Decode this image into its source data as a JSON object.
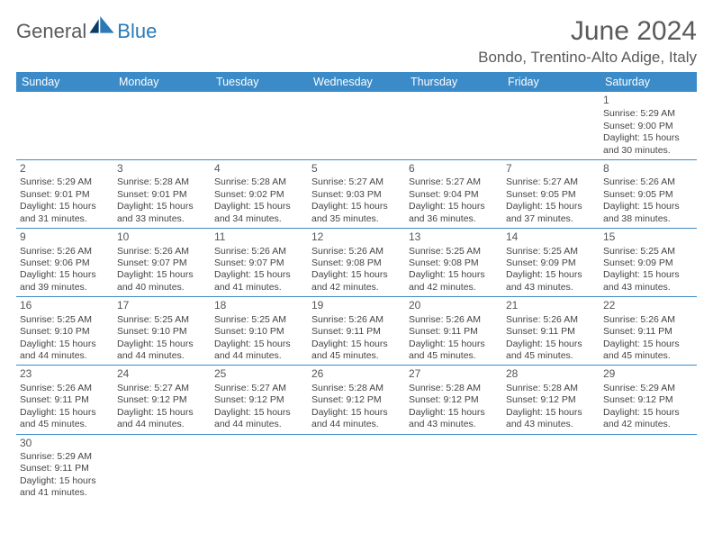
{
  "brand": {
    "part1": "General",
    "part2": "Blue"
  },
  "title": "June 2024",
  "location": "Bondo, Trentino-Alto Adige, Italy",
  "colors": {
    "header_bg": "#3b8bc8",
    "header_text": "#ffffff",
    "border": "#3b8bc8",
    "text": "#444444",
    "logo_gray": "#5a5a5a",
    "logo_blue": "#2a7ab8"
  },
  "weekdays": [
    "Sunday",
    "Monday",
    "Tuesday",
    "Wednesday",
    "Thursday",
    "Friday",
    "Saturday"
  ],
  "cells": [
    [
      null,
      null,
      null,
      null,
      null,
      null,
      {
        "day": "1",
        "sunrise": "Sunrise: 5:29 AM",
        "sunset": "Sunset: 9:00 PM",
        "daylight1": "Daylight: 15 hours",
        "daylight2": "and 30 minutes."
      }
    ],
    [
      {
        "day": "2",
        "sunrise": "Sunrise: 5:29 AM",
        "sunset": "Sunset: 9:01 PM",
        "daylight1": "Daylight: 15 hours",
        "daylight2": "and 31 minutes."
      },
      {
        "day": "3",
        "sunrise": "Sunrise: 5:28 AM",
        "sunset": "Sunset: 9:01 PM",
        "daylight1": "Daylight: 15 hours",
        "daylight2": "and 33 minutes."
      },
      {
        "day": "4",
        "sunrise": "Sunrise: 5:28 AM",
        "sunset": "Sunset: 9:02 PM",
        "daylight1": "Daylight: 15 hours",
        "daylight2": "and 34 minutes."
      },
      {
        "day": "5",
        "sunrise": "Sunrise: 5:27 AM",
        "sunset": "Sunset: 9:03 PM",
        "daylight1": "Daylight: 15 hours",
        "daylight2": "and 35 minutes."
      },
      {
        "day": "6",
        "sunrise": "Sunrise: 5:27 AM",
        "sunset": "Sunset: 9:04 PM",
        "daylight1": "Daylight: 15 hours",
        "daylight2": "and 36 minutes."
      },
      {
        "day": "7",
        "sunrise": "Sunrise: 5:27 AM",
        "sunset": "Sunset: 9:05 PM",
        "daylight1": "Daylight: 15 hours",
        "daylight2": "and 37 minutes."
      },
      {
        "day": "8",
        "sunrise": "Sunrise: 5:26 AM",
        "sunset": "Sunset: 9:05 PM",
        "daylight1": "Daylight: 15 hours",
        "daylight2": "and 38 minutes."
      }
    ],
    [
      {
        "day": "9",
        "sunrise": "Sunrise: 5:26 AM",
        "sunset": "Sunset: 9:06 PM",
        "daylight1": "Daylight: 15 hours",
        "daylight2": "and 39 minutes."
      },
      {
        "day": "10",
        "sunrise": "Sunrise: 5:26 AM",
        "sunset": "Sunset: 9:07 PM",
        "daylight1": "Daylight: 15 hours",
        "daylight2": "and 40 minutes."
      },
      {
        "day": "11",
        "sunrise": "Sunrise: 5:26 AM",
        "sunset": "Sunset: 9:07 PM",
        "daylight1": "Daylight: 15 hours",
        "daylight2": "and 41 minutes."
      },
      {
        "day": "12",
        "sunrise": "Sunrise: 5:26 AM",
        "sunset": "Sunset: 9:08 PM",
        "daylight1": "Daylight: 15 hours",
        "daylight2": "and 42 minutes."
      },
      {
        "day": "13",
        "sunrise": "Sunrise: 5:25 AM",
        "sunset": "Sunset: 9:08 PM",
        "daylight1": "Daylight: 15 hours",
        "daylight2": "and 42 minutes."
      },
      {
        "day": "14",
        "sunrise": "Sunrise: 5:25 AM",
        "sunset": "Sunset: 9:09 PM",
        "daylight1": "Daylight: 15 hours",
        "daylight2": "and 43 minutes."
      },
      {
        "day": "15",
        "sunrise": "Sunrise: 5:25 AM",
        "sunset": "Sunset: 9:09 PM",
        "daylight1": "Daylight: 15 hours",
        "daylight2": "and 43 minutes."
      }
    ],
    [
      {
        "day": "16",
        "sunrise": "Sunrise: 5:25 AM",
        "sunset": "Sunset: 9:10 PM",
        "daylight1": "Daylight: 15 hours",
        "daylight2": "and 44 minutes."
      },
      {
        "day": "17",
        "sunrise": "Sunrise: 5:25 AM",
        "sunset": "Sunset: 9:10 PM",
        "daylight1": "Daylight: 15 hours",
        "daylight2": "and 44 minutes."
      },
      {
        "day": "18",
        "sunrise": "Sunrise: 5:25 AM",
        "sunset": "Sunset: 9:10 PM",
        "daylight1": "Daylight: 15 hours",
        "daylight2": "and 44 minutes."
      },
      {
        "day": "19",
        "sunrise": "Sunrise: 5:26 AM",
        "sunset": "Sunset: 9:11 PM",
        "daylight1": "Daylight: 15 hours",
        "daylight2": "and 45 minutes."
      },
      {
        "day": "20",
        "sunrise": "Sunrise: 5:26 AM",
        "sunset": "Sunset: 9:11 PM",
        "daylight1": "Daylight: 15 hours",
        "daylight2": "and 45 minutes."
      },
      {
        "day": "21",
        "sunrise": "Sunrise: 5:26 AM",
        "sunset": "Sunset: 9:11 PM",
        "daylight1": "Daylight: 15 hours",
        "daylight2": "and 45 minutes."
      },
      {
        "day": "22",
        "sunrise": "Sunrise: 5:26 AM",
        "sunset": "Sunset: 9:11 PM",
        "daylight1": "Daylight: 15 hours",
        "daylight2": "and 45 minutes."
      }
    ],
    [
      {
        "day": "23",
        "sunrise": "Sunrise: 5:26 AM",
        "sunset": "Sunset: 9:11 PM",
        "daylight1": "Daylight: 15 hours",
        "daylight2": "and 45 minutes."
      },
      {
        "day": "24",
        "sunrise": "Sunrise: 5:27 AM",
        "sunset": "Sunset: 9:12 PM",
        "daylight1": "Daylight: 15 hours",
        "daylight2": "and 44 minutes."
      },
      {
        "day": "25",
        "sunrise": "Sunrise: 5:27 AM",
        "sunset": "Sunset: 9:12 PM",
        "daylight1": "Daylight: 15 hours",
        "daylight2": "and 44 minutes."
      },
      {
        "day": "26",
        "sunrise": "Sunrise: 5:28 AM",
        "sunset": "Sunset: 9:12 PM",
        "daylight1": "Daylight: 15 hours",
        "daylight2": "and 44 minutes."
      },
      {
        "day": "27",
        "sunrise": "Sunrise: 5:28 AM",
        "sunset": "Sunset: 9:12 PM",
        "daylight1": "Daylight: 15 hours",
        "daylight2": "and 43 minutes."
      },
      {
        "day": "28",
        "sunrise": "Sunrise: 5:28 AM",
        "sunset": "Sunset: 9:12 PM",
        "daylight1": "Daylight: 15 hours",
        "daylight2": "and 43 minutes."
      },
      {
        "day": "29",
        "sunrise": "Sunrise: 5:29 AM",
        "sunset": "Sunset: 9:12 PM",
        "daylight1": "Daylight: 15 hours",
        "daylight2": "and 42 minutes."
      }
    ],
    [
      {
        "day": "30",
        "sunrise": "Sunrise: 5:29 AM",
        "sunset": "Sunset: 9:11 PM",
        "daylight1": "Daylight: 15 hours",
        "daylight2": "and 41 minutes."
      },
      null,
      null,
      null,
      null,
      null,
      null
    ]
  ]
}
